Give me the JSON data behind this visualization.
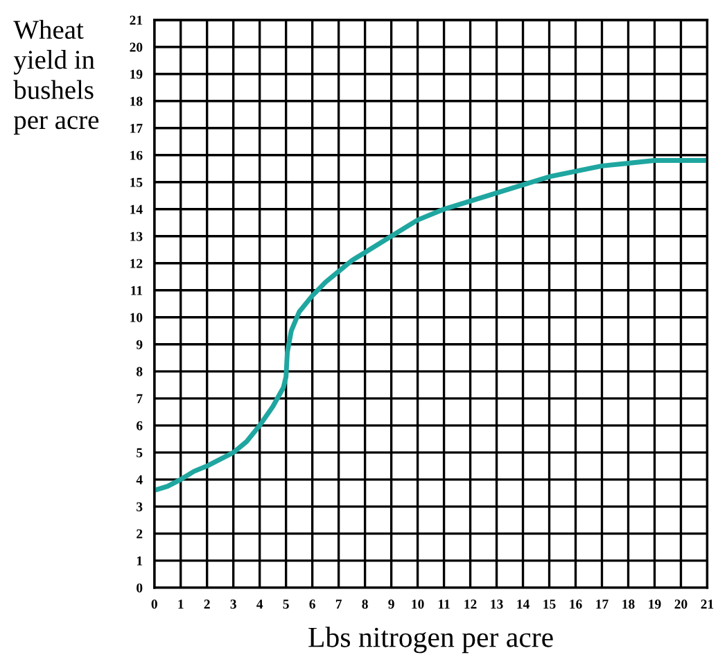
{
  "chart_data": {
    "type": "line",
    "xlabel": "Lbs nitrogen per acre",
    "ylabel": "Wheat\nyield in\nbushels\nper acre",
    "x": [
      0,
      0.5,
      1,
      1.5,
      2,
      2.5,
      3,
      3.5,
      4,
      4.5,
      4.9,
      5,
      5.05,
      5.2,
      5.5,
      6,
      6.5,
      7,
      7.5,
      8,
      9,
      10,
      11,
      12,
      13,
      14,
      15,
      16,
      17,
      18,
      19,
      20,
      21
    ],
    "series": [
      {
        "color": "#1fa6a0",
        "values": [
          3.6,
          3.75,
          4,
          4.3,
          4.5,
          4.75,
          5,
          5.4,
          6,
          6.7,
          7.4,
          7.8,
          8.7,
          9.5,
          10.2,
          10.8,
          11.3,
          11.7,
          12.1,
          12.4,
          13,
          13.6,
          14,
          14.3,
          14.6,
          14.9,
          15.2,
          15.4,
          15.6,
          15.7,
          15.8,
          15.8,
          15.8
        ]
      }
    ],
    "xlim": [
      0,
      21
    ],
    "ylim": [
      0,
      21
    ],
    "xticks": [
      0,
      1,
      2,
      3,
      4,
      5,
      6,
      7,
      8,
      9,
      10,
      11,
      12,
      13,
      14,
      15,
      16,
      17,
      18,
      19,
      20,
      21
    ],
    "yticks": [
      0,
      1,
      2,
      3,
      4,
      5,
      6,
      7,
      8,
      9,
      10,
      11,
      12,
      13,
      14,
      15,
      16,
      17,
      18,
      19,
      20,
      21
    ],
    "grid": true,
    "marker": "none",
    "line_style": "solid"
  }
}
